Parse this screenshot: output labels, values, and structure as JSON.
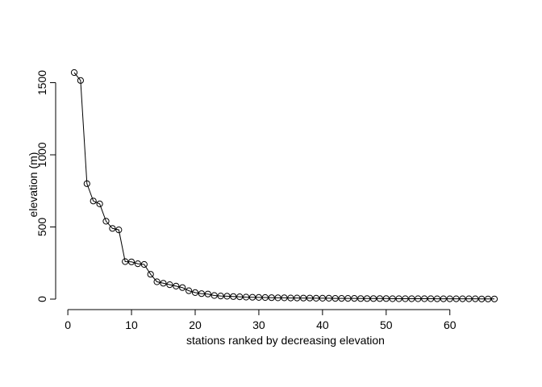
{
  "chart_data": {
    "type": "line",
    "title": "",
    "xlabel": "stations ranked by decreasing elevation",
    "ylabel": "elevation (m)",
    "xlim": [
      1,
      67
    ],
    "ylim": [
      0,
      1570
    ],
    "x_ticks": [
      0,
      10,
      20,
      30,
      40,
      50,
      60
    ],
    "y_ticks": [
      0,
      500,
      1000,
      1500
    ],
    "grid": false,
    "legend": "none",
    "marker": "open-circle",
    "line_color": "#000000",
    "x": [
      1,
      2,
      3,
      4,
      5,
      6,
      7,
      8,
      9,
      10,
      11,
      12,
      13,
      14,
      15,
      16,
      17,
      18,
      19,
      20,
      21,
      22,
      23,
      24,
      25,
      26,
      27,
      28,
      29,
      30,
      31,
      32,
      33,
      34,
      35,
      36,
      37,
      38,
      39,
      40,
      41,
      42,
      43,
      44,
      45,
      46,
      47,
      48,
      49,
      50,
      51,
      52,
      53,
      54,
      55,
      56,
      57,
      58,
      59,
      60,
      61,
      62,
      63,
      64,
      65,
      66,
      67
    ],
    "values": [
      1570,
      1515,
      800,
      680,
      660,
      540,
      490,
      480,
      260,
      258,
      245,
      240,
      172,
      120,
      110,
      100,
      90,
      80,
      58,
      45,
      38,
      35,
      25,
      22,
      20,
      18,
      16,
      14,
      13,
      12,
      11,
      10,
      9,
      9,
      8,
      8,
      7,
      7,
      6,
      6,
      6,
      5,
      5,
      5,
      5,
      4,
      4,
      4,
      4,
      4,
      3,
      3,
      3,
      3,
      3,
      3,
      3,
      2,
      2,
      2,
      2,
      2,
      2,
      2,
      1,
      1,
      1
    ]
  }
}
